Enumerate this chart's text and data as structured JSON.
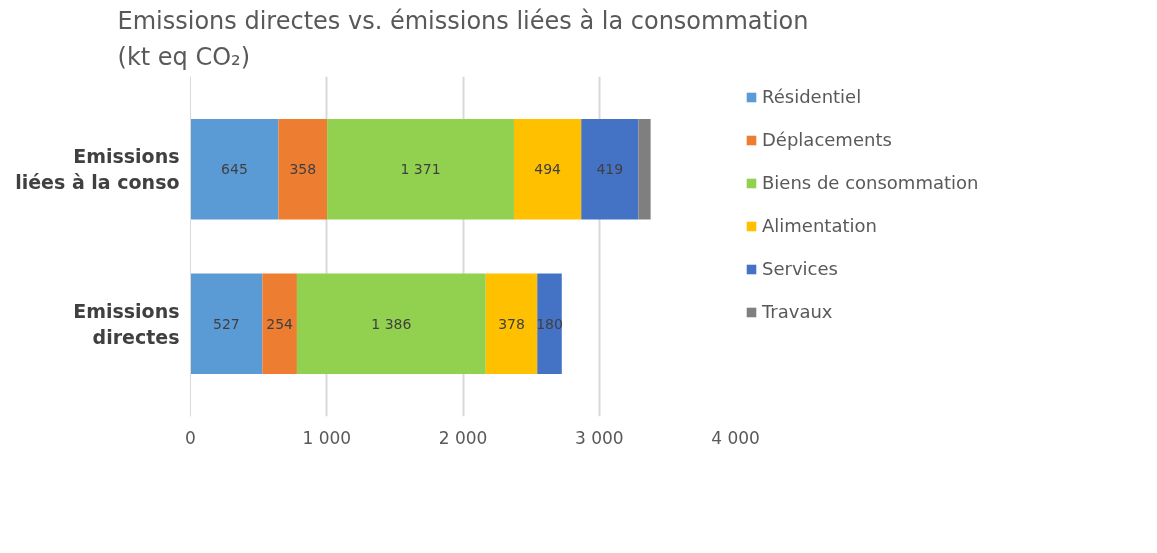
{
  "chart_data": {
    "type": "bar",
    "orientation": "horizontal",
    "stacked": true,
    "title": "Emissions directes vs. émissions liées à la consommation\n(kt eq CO₂)",
    "categories": [
      "Emissions liées à la conso",
      "Emissions directes"
    ],
    "series": [
      {
        "name": "Résidentiel",
        "color": "#5b9bd5",
        "values": [
          645,
          527
        ],
        "value_labels": [
          "645",
          "527"
        ]
      },
      {
        "name": "Déplacements",
        "color": "#ed7d31",
        "values": [
          358,
          254
        ],
        "value_labels": [
          "358",
          "254"
        ]
      },
      {
        "name": "Biens de consommation",
        "color": "#92d050",
        "values": [
          1371,
          1386
        ],
        "value_labels": [
          "1 371",
          "1 386"
        ]
      },
      {
        "name": "Alimentation",
        "color": "#ffc000",
        "values": [
          494,
          378
        ],
        "value_labels": [
          "494",
          "378"
        ]
      },
      {
        "name": "Services",
        "color": "#4472c4",
        "values": [
          419,
          180
        ],
        "value_labels": [
          "419",
          "180"
        ]
      },
      {
        "name": "Travaux",
        "color": "#7f7f7f",
        "values": [
          90,
          0
        ],
        "value_labels": [
          null,
          null
        ]
      }
    ],
    "xlim": [
      0,
      4000
    ],
    "xticks": [
      0,
      {
        "value": 1000,
        "label": "1 000"
      },
      {
        "value": 2000,
        "label": "2 000"
      },
      {
        "value": 3000,
        "label": "3 000"
      },
      {
        "value": 4000,
        "label": "4 000"
      }
    ],
    "grid": "x",
    "legend": "right"
  }
}
